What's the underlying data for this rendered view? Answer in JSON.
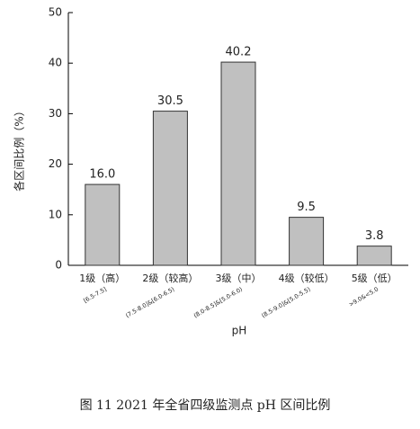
{
  "chart_data": {
    "type": "bar",
    "caption": "图 11   2021 年全省四级监测点 pH 区间比例",
    "y_label": "各区间比例（%）",
    "x_label": "pH",
    "categories": [
      "1级（高）",
      "2级（较高）",
      "3级（中）",
      "4级（较低）",
      "5级（低）"
    ],
    "sublabels": [
      "[6.5-7.5]",
      "(7.5-8.0]&[6.0-6.5)",
      "(8.0-8.5]&[5.0-6.0)",
      "(8.5-9.0]&[5.0-5.5)",
      ">9.0&<5.0"
    ],
    "values": [
      16.0,
      30.5,
      40.2,
      9.5,
      3.8
    ],
    "value_labels": [
      "16.0",
      "30.5",
      "40.2",
      "9.5",
      "3.8"
    ],
    "color": "#c0c0c0",
    "ylim": [
      0,
      50
    ],
    "yticks": [
      0,
      10,
      20,
      30,
      40,
      50
    ]
  }
}
